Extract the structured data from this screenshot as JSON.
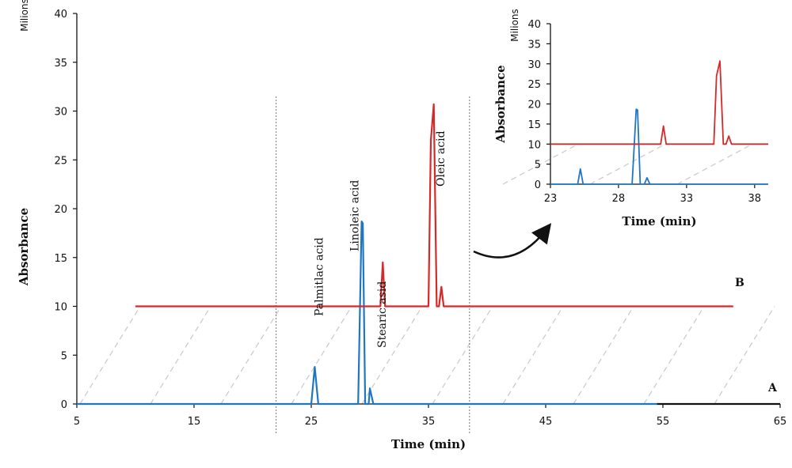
{
  "chart_data": [
    {
      "type": "line",
      "xlabel": "Time (min)",
      "ylabel": "Absorbance",
      "yunit": "Milions",
      "xlim": [
        5,
        65
      ],
      "ylim": [
        0,
        40
      ],
      "xticks": [
        5,
        15,
        25,
        35,
        45,
        55,
        65
      ],
      "yticks": [
        0,
        5,
        10,
        15,
        20,
        25,
        30,
        35,
        40
      ],
      "grid": false,
      "series": [
        {
          "name": "A",
          "color": "#1f77c4",
          "x": [
            5.0,
            25.0,
            25.3,
            25.6,
            29.0,
            29.3,
            29.4,
            29.6,
            29.9,
            30.0,
            30.3,
            54.5
          ],
          "y": [
            0,
            0,
            3.8,
            0,
            0,
            18.7,
            18.5,
            0,
            0,
            1.6,
            0,
            0
          ]
        },
        {
          "name": "B",
          "color": "#d42a2a",
          "x": [
            10.0,
            30.9,
            31.1,
            31.3,
            35.0,
            35.2,
            35.45,
            35.7,
            35.9,
            36.1,
            36.3,
            61.0
          ],
          "y": [
            10,
            10,
            14.5,
            10,
            10,
            27,
            30.7,
            10,
            10,
            12,
            10,
            10
          ]
        }
      ],
      "annotations": [
        {
          "text": "Palmitlac acid",
          "x": 25.3
        },
        {
          "text": "Linoleic acid",
          "x": 29.3
        },
        {
          "text": "Oleic acid",
          "x": 35.4
        },
        {
          "text": "Stearic asid",
          "x": 30.0
        }
      ],
      "trace_labels": [
        "B",
        "A"
      ],
      "reference_lines_x": [
        22.0,
        38.5
      ]
    },
    {
      "type": "line",
      "xlabel": "Time (min)",
      "ylabel": "Absorbance",
      "yunit": "Milions",
      "xlim": [
        23,
        39
      ],
      "ylim": [
        0,
        40
      ],
      "xticks": [
        23,
        28,
        33,
        38
      ],
      "yticks": [
        0,
        5,
        10,
        15,
        20,
        25,
        30,
        35,
        40
      ],
      "grid": false,
      "series": [
        {
          "name": "A",
          "color": "#1f77c4",
          "x": [
            23.0,
            25.0,
            25.2,
            25.4,
            29.0,
            29.3,
            29.4,
            29.6,
            29.9,
            30.1,
            30.3,
            39.0
          ],
          "y": [
            0,
            0,
            3.8,
            0,
            0,
            18.7,
            18.5,
            0,
            0,
            1.6,
            0,
            0
          ]
        },
        {
          "name": "B",
          "color": "#d42a2a",
          "x": [
            23.0,
            31.1,
            31.3,
            31.5,
            35.0,
            35.2,
            35.45,
            35.7,
            35.9,
            36.1,
            36.3,
            39.0
          ],
          "y": [
            10,
            10,
            14.5,
            10,
            10,
            27,
            30.7,
            10,
            10,
            12,
            10,
            10
          ]
        }
      ]
    }
  ]
}
